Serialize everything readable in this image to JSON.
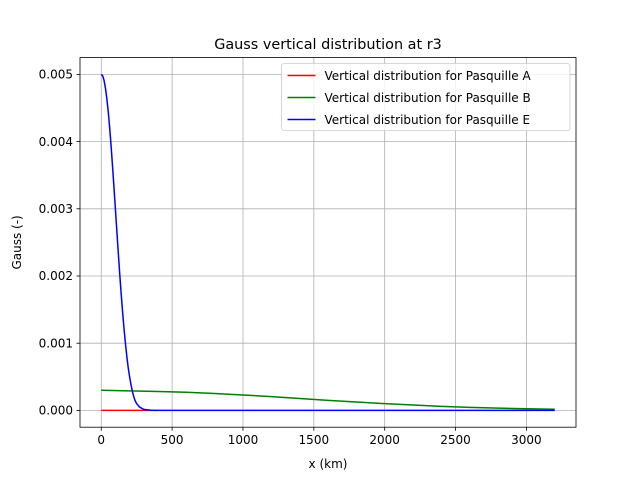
{
  "chart_data": {
    "type": "line",
    "title": "Gauss vertical distribution at r3",
    "xlabel": "x (km)",
    "ylabel": "Gauss (-)",
    "xlim": [
      -150,
      3350
    ],
    "ylim": [
      -0.00025,
      0.00525
    ],
    "xticks": [
      0,
      500,
      1000,
      1500,
      2000,
      2500,
      3000
    ],
    "xtick_labels": [
      "0",
      "500",
      "1000",
      "1500",
      "2000",
      "2500",
      "3000"
    ],
    "yticks": [
      0.0,
      0.001,
      0.002,
      0.003,
      0.004,
      0.005
    ],
    "ytick_labels": [
      "0.000",
      "0.001",
      "0.002",
      "0.003",
      "0.004",
      "0.005"
    ],
    "grid": true,
    "legend_position": "upper-right",
    "series": [
      {
        "name": "Vertical distribution for Pasquille A",
        "color": "#ff0000",
        "x": [
          0,
          50,
          100,
          150,
          200,
          250,
          300,
          350,
          400
        ],
        "y": [
          0,
          0,
          0,
          0,
          0,
          0,
          0,
          0,
          0
        ]
      },
      {
        "name": "Vertical distribution for Pasquille B",
        "color": "#008000",
        "x": [
          0,
          200,
          400,
          600,
          800,
          1000,
          1200,
          1400,
          1600,
          1800,
          2000,
          2200,
          2400,
          2600,
          2800,
          3000,
          3200
        ],
        "y": [
          0.0003,
          0.00029,
          0.000282,
          0.00027,
          0.000252,
          0.00023,
          0.000205,
          0.000178,
          0.00015,
          0.000125,
          0.0001,
          8e-05,
          6e-05,
          4.5e-05,
          3.3e-05,
          2.4e-05,
          1.7e-05
        ]
      },
      {
        "name": "Vertical distribution for Pasquille E",
        "color": "#0000ff",
        "x": [
          0,
          10,
          20,
          30,
          40,
          50,
          60,
          70,
          80,
          90,
          100,
          110,
          120,
          130,
          140,
          150,
          160,
          170,
          180,
          190,
          200,
          210,
          220,
          230,
          240,
          250,
          270,
          300,
          350,
          400,
          600,
          1000,
          1500,
          2000,
          2500,
          3000,
          3200
        ],
        "y": [
          0.005,
          0.00498,
          0.00491,
          0.00479,
          0.00463,
          0.00443,
          0.00419,
          0.00392,
          0.00362,
          0.00331,
          0.00299,
          0.00267,
          0.00235,
          0.00204,
          0.00175,
          0.00148,
          0.00123,
          0.00101,
          0.00081,
          0.00064,
          0.0005,
          0.00038,
          0.00028,
          0.0002,
          0.00014,
          0.0001,
          5e-05,
          1.5e-05,
          2e-06,
          0,
          0,
          0,
          0,
          0,
          0,
          0,
          0
        ]
      }
    ]
  }
}
